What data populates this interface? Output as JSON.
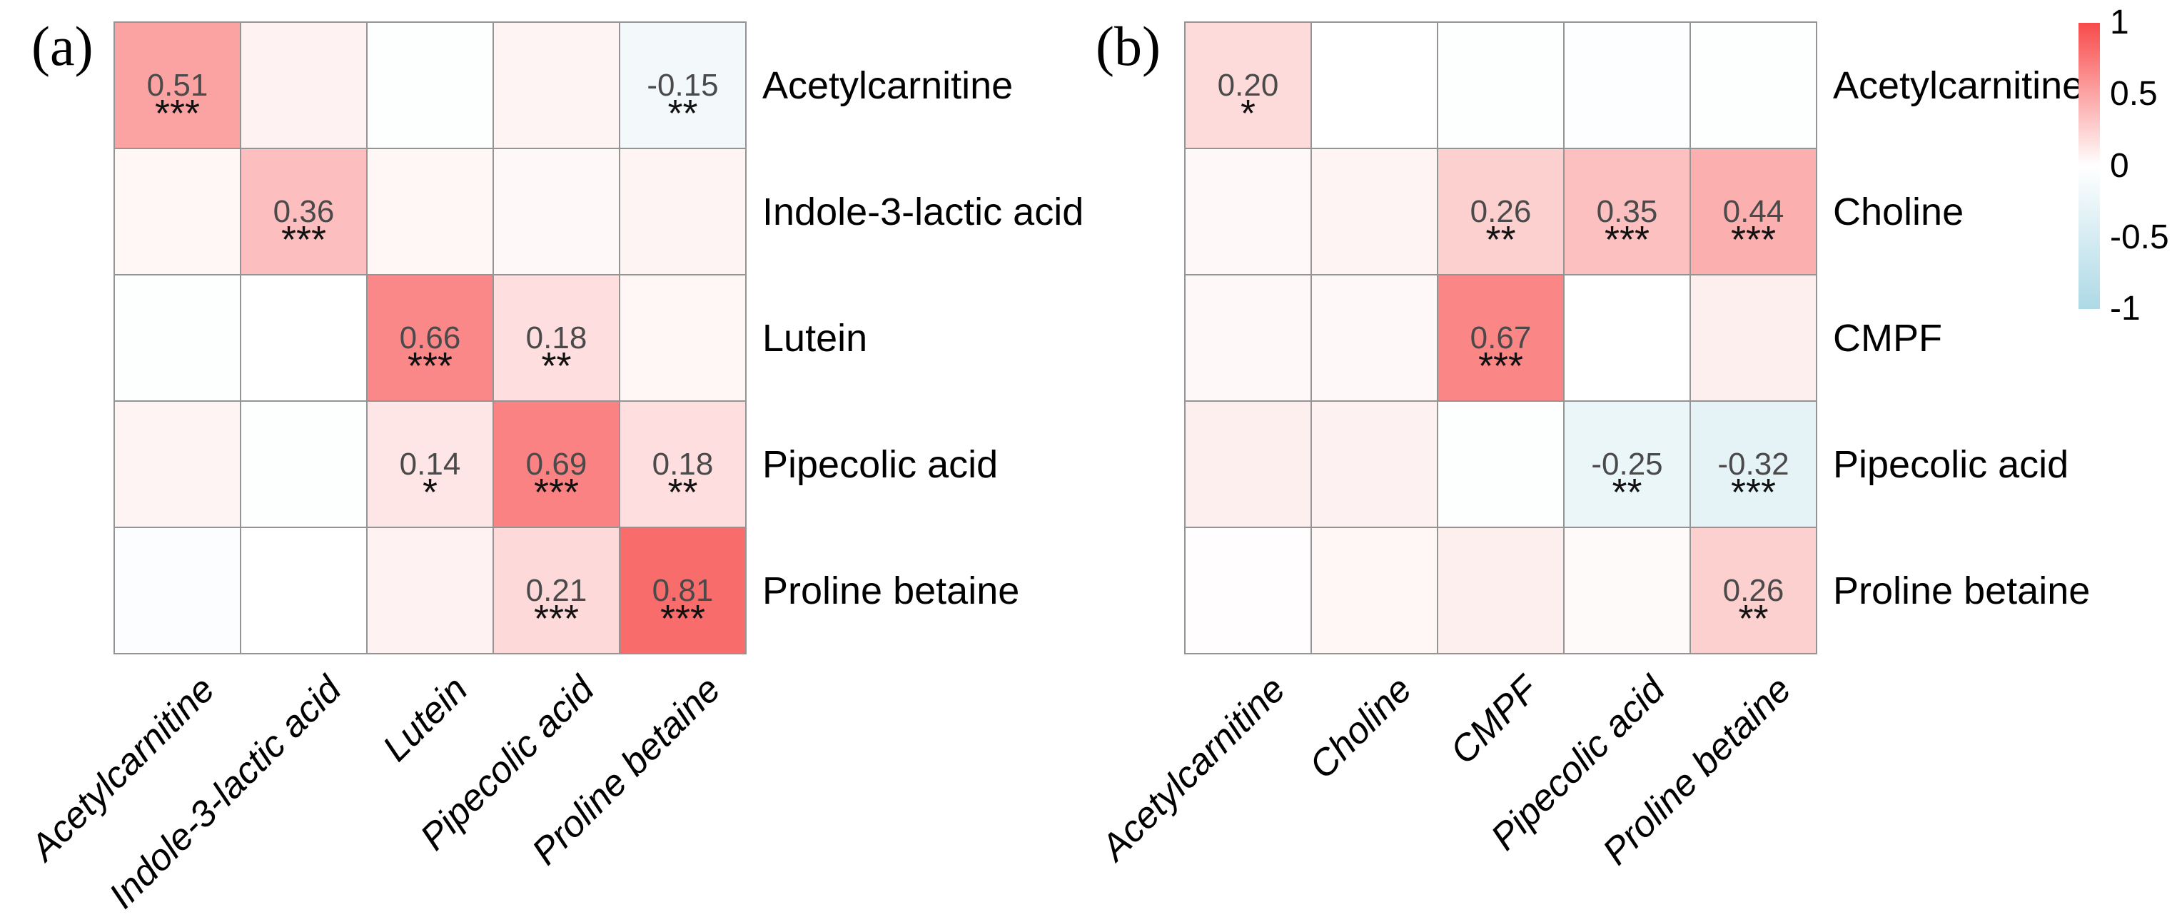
{
  "chart_data": [
    {
      "type": "heatmap",
      "panel": "a",
      "tag": "(a)",
      "x_labels": [
        "Acetylcarnitine",
        "Indole-3-lactic acid",
        "Lutein",
        "Pipecolic acid",
        "Proline betaine"
      ],
      "y_labels": [
        "Acetylcarnitine",
        "Indole-3-lactic acid",
        "Lutein",
        "Pipecolic acid",
        "Proline betaine"
      ],
      "values": [
        [
          0.51,
          0.07,
          -0.03,
          0.06,
          -0.15
        ],
        [
          0.05,
          0.36,
          0.05,
          0.04,
          0.06
        ],
        [
          -0.03,
          0.0,
          0.66,
          0.18,
          0.05
        ],
        [
          0.06,
          -0.03,
          0.14,
          0.69,
          0.18
        ],
        [
          -0.04,
          0.0,
          0.07,
          0.21,
          0.81
        ]
      ],
      "labels": [
        [
          "0.51",
          "",
          "",
          "",
          "-0.15"
        ],
        [
          "",
          "0.36",
          "",
          "",
          ""
        ],
        [
          "",
          "",
          "0.66",
          "0.18",
          ""
        ],
        [
          "",
          "",
          "0.14",
          "0.69",
          "0.18"
        ],
        [
          "",
          "",
          "",
          "0.21",
          "0.81"
        ]
      ],
      "stars": [
        [
          "***",
          "",
          "",
          "",
          "**"
        ],
        [
          "",
          "***",
          "",
          "",
          ""
        ],
        [
          "",
          "",
          "***",
          "**",
          ""
        ],
        [
          "",
          "",
          "*",
          "***",
          "**"
        ],
        [
          "",
          "",
          "",
          "***",
          "***"
        ]
      ],
      "zlim": [
        -1,
        1
      ],
      "colorscale": {
        "positive": "#F84A4A",
        "zero": "#FFFFFF",
        "negative": "#ADD9E6"
      }
    },
    {
      "type": "heatmap",
      "panel": "b",
      "tag": "(b)",
      "x_labels": [
        "Acetylcarnitine",
        "Choline",
        "CMPF",
        "Pipecolic acid",
        "Proline betaine"
      ],
      "y_labels": [
        "Acetylcarnitine",
        "Choline",
        "CMPF",
        "Pipecolic acid",
        "Proline betaine"
      ],
      "values": [
        [
          0.2,
          0.0,
          -0.03,
          -0.02,
          -0.03
        ],
        [
          0.04,
          0.06,
          0.26,
          0.35,
          0.44
        ],
        [
          0.04,
          0.04,
          0.67,
          0.0,
          0.09
        ],
        [
          0.09,
          0.08,
          -0.03,
          -0.25,
          -0.32
        ],
        [
          0.01,
          0.05,
          0.09,
          0.03,
          0.26
        ]
      ],
      "labels": [
        [
          "0.20",
          "",
          "",
          "",
          ""
        ],
        [
          "",
          "",
          "0.26",
          "0.35",
          "0.44"
        ],
        [
          "",
          "",
          "0.67",
          "",
          ""
        ],
        [
          "",
          "",
          "",
          "-0.25",
          "-0.32"
        ],
        [
          "",
          "",
          "",
          "",
          "0.26"
        ]
      ],
      "stars": [
        [
          "*",
          "",
          "",
          "",
          ""
        ],
        [
          "",
          "",
          "**",
          "***",
          "***"
        ],
        [
          "",
          "",
          "***",
          "",
          ""
        ],
        [
          "",
          "",
          "",
          "**",
          "***"
        ],
        [
          "",
          "",
          "",
          "",
          "**"
        ]
      ],
      "zlim": [
        -1,
        1
      ],
      "colorscale": {
        "positive": "#F84A4A",
        "zero": "#FFFFFF",
        "negative": "#ADD9E6"
      }
    }
  ],
  "colorbar": {
    "tick_labels": [
      "1",
      "0.5",
      "0",
      "-0.5",
      "-1"
    ],
    "tick_values": [
      1,
      0.5,
      0,
      -0.5,
      -1
    ],
    "top_color": "#F84A4A",
    "middle_color": "#FFFFFF",
    "bottom_color": "#ADD9E6"
  }
}
